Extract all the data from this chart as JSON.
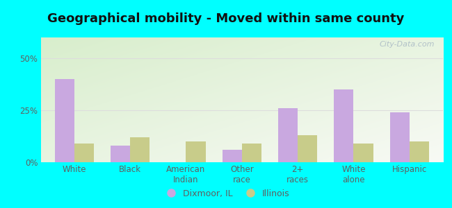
{
  "title": "Geographical mobility - Moved within same county",
  "categories": [
    "White",
    "Black",
    "American\nIndian",
    "Other\nrace",
    "2+\nraces",
    "White\nalone",
    "Hispanic"
  ],
  "dixmoor_values": [
    40,
    8,
    0,
    6,
    26,
    35,
    24
  ],
  "illinois_values": [
    9,
    12,
    10,
    9,
    13,
    9,
    10
  ],
  "dixmoor_color": "#c9a8e0",
  "illinois_color": "#c8cc8a",
  "bar_width": 0.35,
  "ylim": [
    0,
    60
  ],
  "yticks": [
    0,
    25,
    50
  ],
  "ytick_labels": [
    "0%",
    "25%",
    "50%"
  ],
  "background_color": "#00ffff",
  "title_fontsize": 13,
  "tick_fontsize": 8.5,
  "legend_labels": [
    "Dixmoor, IL",
    "Illinois"
  ],
  "watermark": "City-Data.com",
  "grid_color": "#dddddd",
  "axis_label_color": "#606060"
}
